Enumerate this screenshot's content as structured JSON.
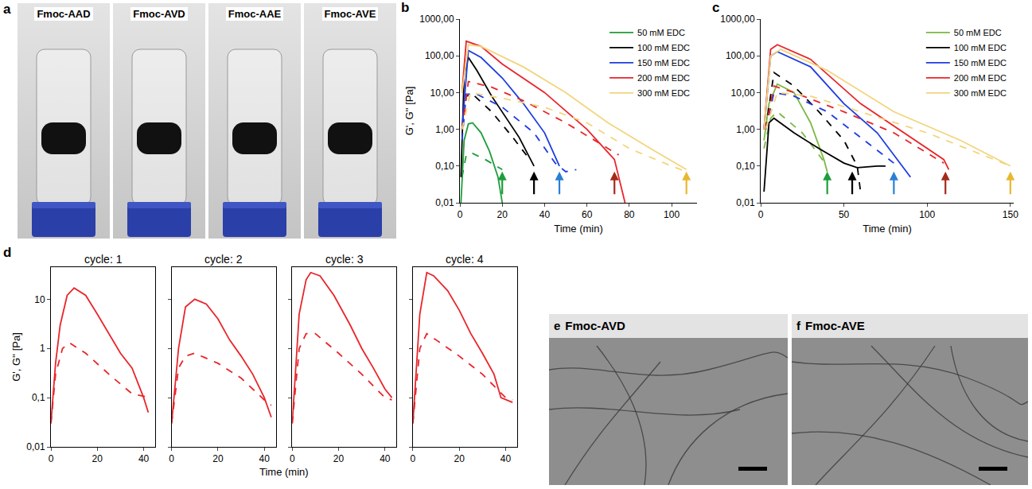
{
  "chart_data": [
    {
      "type": "line",
      "panel": "b",
      "xlabel": "Time (min)",
      "ylabel": "G', G'' [Pa]",
      "log": "y",
      "legend": "top right",
      "xlim": [
        0,
        112
      ],
      "xticks": [
        0,
        20,
        40,
        60,
        80,
        100
      ],
      "ylim": [
        0.01,
        1000
      ],
      "yticks": [
        {
          "value": 0.01,
          "label": "0,01"
        },
        {
          "value": 0.1,
          "label": "0,10"
        },
        {
          "value": 1,
          "label": "1,00"
        },
        {
          "value": 10,
          "label": "10,00"
        },
        {
          "value": 100,
          "label": "100,00"
        },
        {
          "value": 1000,
          "label": "1000,00"
        }
      ],
      "series": [
        {
          "name": "50 mM EDC",
          "color": "#1e9e3a",
          "line_style": "solid",
          "x": [
            0.5,
            2,
            4,
            6,
            10,
            14,
            18,
            20
          ],
          "values": [
            0.01,
            0.5,
            1.4,
            1.5,
            0.8,
            0.25,
            0.05,
            0.01
          ]
        },
        {
          "name": "50 mM EDC",
          "color": "#1e9e3a",
          "line_style": "dashed",
          "x": [
            1,
            3,
            6,
            12,
            20
          ],
          "values": [
            0.05,
            0.2,
            0.22,
            0.15,
            0.08
          ]
        },
        {
          "name": "100 mM EDC",
          "color": "#000000",
          "line_style": "solid",
          "x": [
            0.5,
            2,
            4,
            8,
            15,
            22,
            28,
            35
          ],
          "values": [
            0.05,
            30,
            90,
            40,
            8,
            2,
            0.6,
            0.1
          ]
        },
        {
          "name": "100 mM EDC",
          "color": "#000000",
          "line_style": "dashed",
          "x": [
            1,
            3,
            6,
            15,
            25,
            33
          ],
          "values": [
            1,
            8,
            9,
            3,
            0.6,
            0.15
          ]
        },
        {
          "name": "150 mM EDC",
          "color": "#1f3de0",
          "line_style": "solid",
          "x": [
            1,
            4,
            10,
            20,
            30,
            40,
            47
          ],
          "values": [
            1,
            140,
            90,
            25,
            5,
            0.8,
            0.1
          ]
        },
        {
          "name": "150 mM EDC",
          "color": "#1f3de0",
          "line_style": "dashed",
          "x": [
            1,
            3,
            8,
            20,
            35,
            45,
            50,
            55
          ],
          "values": [
            0.5,
            9,
            9,
            4,
            0.8,
            0.12,
            0.07,
            0.08
          ]
        },
        {
          "name": "200 mM EDC",
          "color": "#e8262b",
          "line_style": "solid",
          "x": [
            1,
            3,
            10,
            20,
            40,
            60,
            73,
            78
          ],
          "values": [
            10,
            250,
            180,
            60,
            10,
            1,
            0.15,
            0.01
          ]
        },
        {
          "name": "200 mM EDC",
          "color": "#e8262b",
          "line_style": "dashed",
          "x": [
            1,
            4,
            15,
            30,
            50,
            70,
            75
          ],
          "values": [
            1,
            20,
            14,
            6,
            1.5,
            0.3,
            0.2
          ]
        },
        {
          "name": "300 mM EDC",
          "color": "#f2d57e",
          "line_style": "solid",
          "x": [
            1,
            4,
            10,
            30,
            50,
            70,
            90,
            107
          ],
          "values": [
            10,
            200,
            180,
            50,
            10,
            1.5,
            0.3,
            0.08
          ]
        },
        {
          "name": "300 mM EDC",
          "color": "#f2d57e",
          "line_style": "dashed",
          "x": [
            1,
            5,
            20,
            40,
            60,
            80,
            100,
            107
          ],
          "values": [
            1,
            10,
            7,
            4,
            1.5,
            0.3,
            0.1,
            0.07
          ]
        }
      ],
      "arrows": [
        {
          "x": 20,
          "color": "#1e9e3a"
        },
        {
          "x": 35,
          "color": "#000000"
        },
        {
          "x": 47,
          "color": "#2a7fd4"
        },
        {
          "x": 73,
          "color": "#a52a1a"
        },
        {
          "x": 107,
          "color": "#e8b830"
        }
      ]
    },
    {
      "type": "line",
      "panel": "c",
      "xlabel": "Time (min)",
      "log": "y",
      "legend": "top right",
      "xlim": [
        0,
        152
      ],
      "xticks": [
        0,
        50,
        100,
        150
      ],
      "ylim": [
        0.01,
        1000
      ],
      "yticks": [
        {
          "value": 0.01,
          "label": "0,01"
        },
        {
          "value": 0.1,
          "label": "0,10"
        },
        {
          "value": 1,
          "label": "1,00"
        },
        {
          "value": 10,
          "label": "10,00"
        },
        {
          "value": 100,
          "label": "100,00"
        },
        {
          "value": 1000,
          "label": "1000,00"
        }
      ],
      "series": [
        {
          "name": "50 mM EDC",
          "color": "#7bb842",
          "line_style": "solid",
          "x": [
            2,
            5,
            10,
            20,
            30,
            38,
            40
          ],
          "values": [
            0.5,
            5,
            17,
            10,
            1.5,
            0.15,
            0.07
          ]
        },
        {
          "name": "50 mM EDC",
          "color": "#7bb842",
          "line_style": "dashed",
          "x": [
            2,
            6,
            10,
            25,
            40
          ],
          "values": [
            0.3,
            2,
            3,
            0.8,
            0.1
          ]
        },
        {
          "name": "100 mM EDC",
          "color": "#000000",
          "line_style": "solid",
          "x": [
            2,
            5,
            8,
            20,
            35,
            50,
            58,
            70,
            75
          ],
          "values": [
            0.02,
            1.5,
            2,
            0.8,
            0.3,
            0.12,
            0.09,
            0.1,
            0.1
          ]
        },
        {
          "name": "100 mM EDC",
          "color": "#000000",
          "line_style": "dashed",
          "x": [
            3,
            8,
            20,
            35,
            50,
            58,
            60
          ],
          "values": [
            1,
            35,
            15,
            3,
            0.5,
            0.1,
            0.02
          ]
        },
        {
          "name": "150 mM EDC",
          "color": "#1f3de0",
          "line_style": "solid",
          "x": [
            2,
            6,
            10,
            30,
            50,
            70,
            90
          ],
          "values": [
            1,
            100,
            130,
            50,
            5,
            0.8,
            0.05
          ]
        },
        {
          "name": "150 mM EDC",
          "color": "#1f3de0",
          "line_style": "dashed",
          "x": [
            3,
            8,
            20,
            40,
            60,
            80
          ],
          "values": [
            1,
            10,
            8,
            3,
            0.6,
            0.12
          ]
        },
        {
          "name": "200 mM EDC",
          "color": "#e8262b",
          "line_style": "solid",
          "x": [
            2,
            6,
            10,
            30,
            60,
            90,
            110,
            113
          ],
          "values": [
            1,
            150,
            200,
            80,
            5,
            0.6,
            0.15,
            0.08
          ]
        },
        {
          "name": "200 mM EDC",
          "color": "#e8262b",
          "line_style": "dashed",
          "x": [
            3,
            8,
            20,
            50,
            80,
            110
          ],
          "values": [
            1,
            15,
            10,
            3,
            0.8,
            0.12
          ]
        },
        {
          "name": "300 mM EDC",
          "color": "#f2d57e",
          "line_style": "solid",
          "x": [
            2,
            6,
            12,
            40,
            80,
            120,
            150
          ],
          "values": [
            1,
            100,
            150,
            40,
            3,
            0.5,
            0.1
          ]
        },
        {
          "name": "300 mM EDC",
          "color": "#f2d57e",
          "line_style": "dashed",
          "x": [
            3,
            10,
            30,
            60,
            100,
            150
          ],
          "values": [
            1,
            10,
            8,
            3,
            0.8,
            0.1
          ]
        }
      ],
      "arrows": [
        {
          "x": 40,
          "color": "#1e9e3a"
        },
        {
          "x": 55,
          "color": "#000000"
        },
        {
          "x": 80,
          "color": "#2a7fd4"
        },
        {
          "x": 111,
          "color": "#a52a1a"
        },
        {
          "x": 150,
          "color": "#e8b830"
        }
      ]
    },
    {
      "type": "line",
      "panel": "d",
      "xlabel": "Time (min)",
      "ylabel": "G', G'' [Pa]",
      "log": "y",
      "xlim": [
        0,
        45
      ],
      "xticks": [
        0,
        20,
        40
      ],
      "ylim": [
        0.01,
        45
      ],
      "yticks": [
        {
          "value": 0.01,
          "label": "0,01"
        },
        {
          "value": 0.1,
          "label": "0,1"
        },
        1,
        10
      ],
      "facets": [
        {
          "title": "cycle: 1",
          "series": [
            {
              "color": "#e8262b",
              "line_style": "solid",
              "x": [
                0,
                2,
                4,
                7,
                10,
                15,
                20,
                25,
                30,
                35,
                40,
                42
              ],
              "values": [
                0.03,
                0.5,
                3,
                12,
                17,
                12,
                5,
                2,
                0.8,
                0.4,
                0.1,
                0.05
              ]
            },
            {
              "color": "#e8262b",
              "line_style": "dashed",
              "x": [
                0,
                2,
                5,
                8,
                15,
                25,
                35,
                43
              ],
              "values": [
                0.03,
                0.3,
                1,
                1.3,
                0.8,
                0.3,
                0.12,
                0.1
              ]
            }
          ]
        },
        {
          "title": "cycle: 2",
          "series": [
            {
              "color": "#e8262b",
              "line_style": "solid",
              "x": [
                0,
                3,
                6,
                10,
                15,
                20,
                25,
                30,
                35,
                40,
                43
              ],
              "values": [
                0.03,
                1,
                7,
                10,
                8,
                4,
                1.5,
                0.7,
                0.3,
                0.1,
                0.04
              ]
            },
            {
              "color": "#e8262b",
              "line_style": "dashed",
              "x": [
                0,
                3,
                6,
                10,
                20,
                30,
                40,
                43
              ],
              "values": [
                0.03,
                0.4,
                0.7,
                0.8,
                0.5,
                0.25,
                0.09,
                0.07
              ]
            }
          ]
        },
        {
          "title": "cycle: 3",
          "series": [
            {
              "color": "#e8262b",
              "line_style": "solid",
              "x": [
                0,
                3,
                6,
                8,
                12,
                18,
                25,
                30,
                35,
                40,
                43
              ],
              "values": [
                0.03,
                5,
                25,
                35,
                30,
                12,
                3,
                1,
                0.4,
                0.15,
                0.1
              ]
            },
            {
              "color": "#e8262b",
              "line_style": "dashed",
              "x": [
                0,
                3,
                6,
                10,
                20,
                30,
                40,
                43
              ],
              "values": [
                0.03,
                1,
                2,
                2,
                0.8,
                0.3,
                0.1,
                0.09
              ]
            }
          ]
        },
        {
          "title": "cycle: 4",
          "series": [
            {
              "color": "#e8262b",
              "line_style": "solid",
              "x": [
                0,
                3,
                6,
                9,
                15,
                20,
                25,
                30,
                35,
                38,
                43
              ],
              "values": [
                0.03,
                5,
                35,
                30,
                15,
                6,
                2,
                0.8,
                0.3,
                0.1,
                0.08
              ]
            },
            {
              "color": "#e8262b",
              "line_style": "dashed",
              "x": [
                0,
                3,
                6,
                10,
                20,
                30,
                40,
                43
              ],
              "values": [
                0.03,
                1,
                2,
                1.5,
                0.7,
                0.3,
                0.1,
                0.09
              ]
            }
          ]
        }
      ]
    }
  ],
  "photos": {
    "panel": "a",
    "labels": [
      "Fmoc-AAD",
      "Fmoc-AVD",
      "Fmoc-AAE",
      "Fmoc-AVE"
    ]
  },
  "micrographs": [
    {
      "panel": "e",
      "label": "Fmoc-AVD"
    },
    {
      "panel": "f",
      "label": "Fmoc-AVE"
    }
  ]
}
